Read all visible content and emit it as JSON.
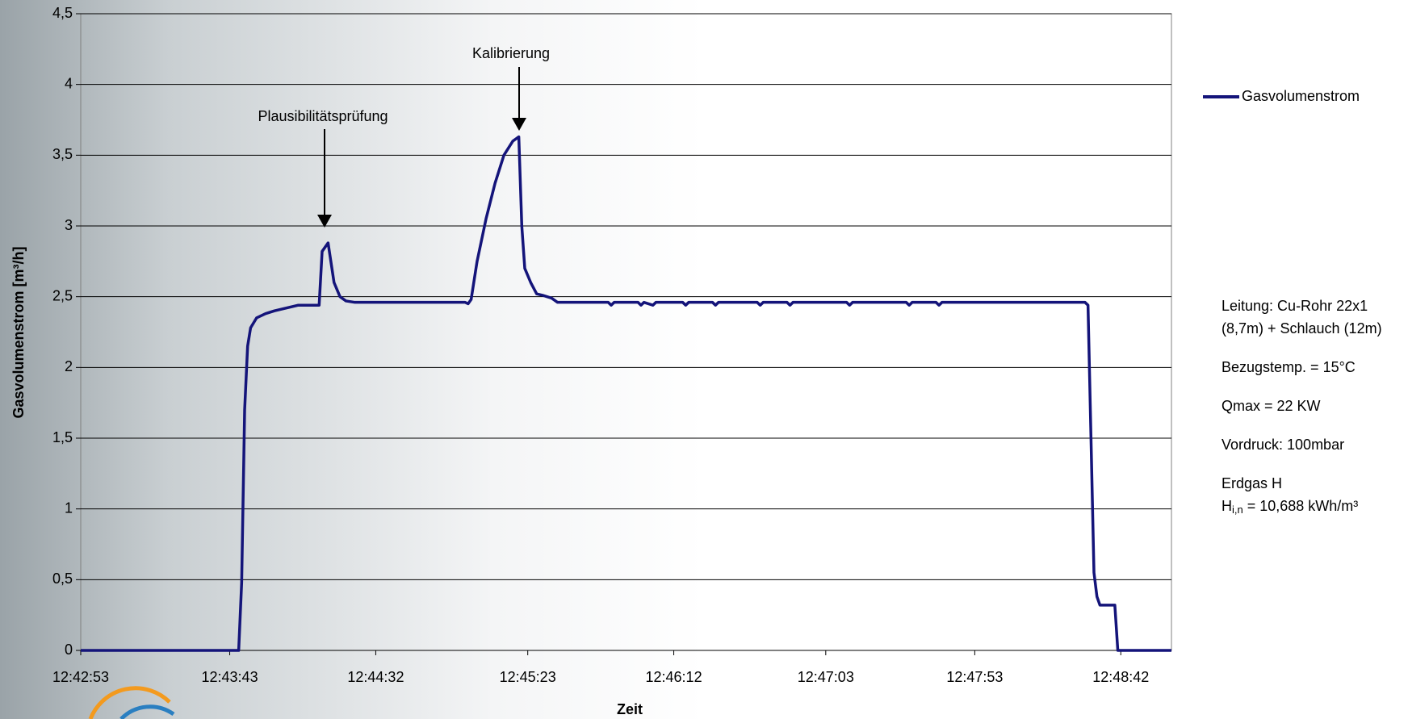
{
  "chart_data": {
    "type": "line",
    "y_label": "Gasvolumenstrom [m³/h]",
    "x_label": "Zeit",
    "annotations": [
      "Plausibilitätsprüfung",
      "Kalibrierung"
    ],
    "notes": [
      "Leitung: Cu-Rohr 22x1",
      "(8,7m) + Schlauch (12m)",
      "Bezugstemp. = 15°C",
      "Qmax = 22 KW",
      "Vordruck: 100mbar",
      "Erdgas H"
    ],
    "heating_value": {
      "symbol": "H",
      "subscript": "i,n",
      "text": " = 10,688 kWh/m³"
    },
    "xlim": [
      45773,
      46139
    ],
    "xticks": [
      {
        "value": 45773,
        "label": "12:42:53"
      },
      {
        "value": 45823,
        "label": "12:43:43"
      },
      {
        "value": 45872,
        "label": "12:44:32"
      },
      {
        "value": 45923,
        "label": "12:45:23"
      },
      {
        "value": 45972,
        "label": "12:46:12"
      },
      {
        "value": 46023,
        "label": "12:47:03"
      },
      {
        "value": 46073,
        "label": "12:47:53"
      },
      {
        "value": 46122,
        "label": "12:48:42"
      }
    ],
    "ylim": [
      0,
      4.5
    ],
    "yticks": [
      0,
      {
        "value": 0.5,
        "label": "0,5"
      },
      1,
      {
        "value": 1.5,
        "label": "1,5"
      },
      2,
      {
        "value": 2.5,
        "label": "2,5"
      },
      3,
      {
        "value": 3.5,
        "label": "3,5"
      },
      4,
      {
        "value": 4.5,
        "label": "4,5"
      }
    ],
    "grid": true,
    "legend": "right",
    "x": [
      45773,
      45826,
      45827,
      45828,
      45829,
      45830,
      45832,
      45835,
      45838,
      45842,
      45846,
      45853,
      45854,
      45856,
      45858,
      45860,
      45862,
      45865,
      45902,
      45903,
      45904,
      45906,
      45909,
      45912,
      45915,
      45918,
      45920,
      45921,
      45922,
      45924,
      45926,
      45928,
      45931,
      45933,
      45950,
      45951,
      45952,
      45960,
      45961,
      45962,
      45965,
      45966,
      45975,
      45976,
      45977,
      45985,
      45986,
      45987,
      46000,
      46001,
      46002,
      46010,
      46011,
      46012,
      46030,
      46031,
      46032,
      46050,
      46051,
      46052,
      46060,
      46061,
      46062,
      46110,
      46111,
      46112,
      46113,
      46114,
      46115,
      46120,
      46121,
      46139
    ],
    "series": [
      {
        "name": "Gasvolumenstrom",
        "color": "#14147a",
        "values": [
          0,
          0,
          0.48,
          1.7,
          2.15,
          2.28,
          2.35,
          2.38,
          2.4,
          2.42,
          2.44,
          2.44,
          2.82,
          2.88,
          2.6,
          2.5,
          2.47,
          2.46,
          2.46,
          2.45,
          2.48,
          2.75,
          3.05,
          3.3,
          3.5,
          3.6,
          3.63,
          3.0,
          2.7,
          2.6,
          2.52,
          2.51,
          2.49,
          2.46,
          2.46,
          2.44,
          2.46,
          2.46,
          2.44,
          2.46,
          2.44,
          2.46,
          2.46,
          2.44,
          2.46,
          2.46,
          2.44,
          2.46,
          2.46,
          2.44,
          2.46,
          2.46,
          2.44,
          2.46,
          2.46,
          2.44,
          2.46,
          2.46,
          2.44,
          2.46,
          2.46,
          2.44,
          2.46,
          2.46,
          2.44,
          1.5,
          0.55,
          0.38,
          0.32,
          0.32,
          0,
          0
        ]
      }
    ]
  }
}
